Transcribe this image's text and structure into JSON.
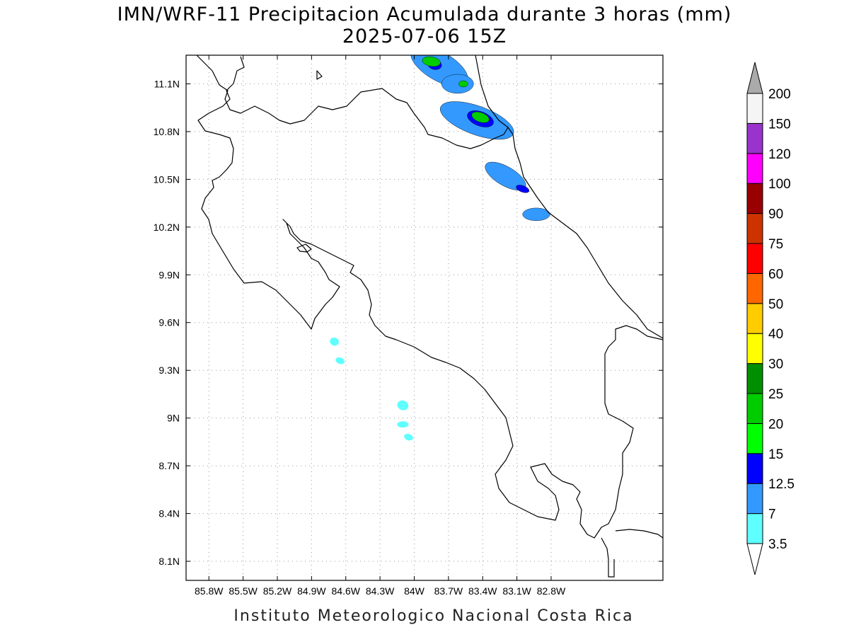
{
  "title": {
    "line1": "IMN/WRF-11 Precipitacion Acumulada durante 3 horas (mm)",
    "line2": "2025-07-06 15Z"
  },
  "footer": "Instituto Meteorologico Nacional Costa Rica",
  "map": {
    "lon_range": [
      -86.0,
      -81.82
    ],
    "lat_range": [
      7.98,
      11.28
    ],
    "lon_ticks": [
      -85.8,
      -85.5,
      -85.2,
      -84.9,
      -84.6,
      -84.3,
      -84.0,
      -83.7,
      -83.4,
      -83.1,
      -82.8
    ],
    "lon_tick_labels": [
      "85.8W",
      "85.5W",
      "85.2W",
      "84.9W",
      "84.6W",
      "84.3W",
      "84W",
      "83.7W",
      "83.4W",
      "83.1W",
      "82.8W"
    ],
    "lat_ticks": [
      8.1,
      8.4,
      8.7,
      9.0,
      9.3,
      9.6,
      9.9,
      10.2,
      10.5,
      10.8,
      11.1
    ],
    "lat_tick_labels": [
      "8.1N",
      "8.4N",
      "8.7N",
      "9N",
      "9.3N",
      "9.6N",
      "9.9N",
      "10.2N",
      "10.5N",
      "10.8N",
      "11.1N"
    ],
    "grid": "dotted"
  },
  "colorbar": {
    "levels": [
      "3.5",
      "7",
      "12.5",
      "15",
      "20",
      "25",
      "30",
      "40",
      "50",
      "60",
      "75",
      "90",
      "100",
      "120",
      "150",
      "200"
    ],
    "colors": [
      "#5fffff",
      "#3399ff",
      "#0000ff",
      "#00ff00",
      "#00cc00",
      "#008f00",
      "#ffff00",
      "#ffcc00",
      "#ff6600",
      "#ff0000",
      "#cc3300",
      "#990000",
      "#ff00ff",
      "#9933cc",
      "#f5f5f5"
    ],
    "over_color": "#aaaaaa",
    "under_color": "#ffffff"
  },
  "precip_areas": [
    {
      "lon": -83.78,
      "lat": 11.21,
      "rx": 0.28,
      "ry": 0.09,
      "rot": 30,
      "level": 1
    },
    {
      "lon": -83.62,
      "lat": 11.1,
      "rx": 0.14,
      "ry": 0.06,
      "rot": 0,
      "level": 1
    },
    {
      "lon": -83.45,
      "lat": 10.87,
      "rx": 0.34,
      "ry": 0.09,
      "rot": 20,
      "level": 1
    },
    {
      "lon": -83.2,
      "lat": 10.52,
      "rx": 0.2,
      "ry": 0.06,
      "rot": 30,
      "level": 1
    },
    {
      "lon": -82.93,
      "lat": 10.28,
      "rx": 0.12,
      "ry": 0.04,
      "rot": 0,
      "level": 1
    },
    {
      "lon": -83.82,
      "lat": 11.22,
      "rx": 0.06,
      "ry": 0.03,
      "rot": 10,
      "level": 2
    },
    {
      "lon": -83.42,
      "lat": 10.88,
      "rx": 0.12,
      "ry": 0.045,
      "rot": 20,
      "level": 2
    },
    {
      "lon": -83.05,
      "lat": 10.44,
      "rx": 0.06,
      "ry": 0.02,
      "rot": 20,
      "level": 2
    },
    {
      "lon": -83.85,
      "lat": 11.24,
      "rx": 0.08,
      "ry": 0.03,
      "rot": 10,
      "level": 4
    },
    {
      "lon": -83.57,
      "lat": 11.1,
      "rx": 0.04,
      "ry": 0.02,
      "rot": 0,
      "level": 4
    },
    {
      "lon": -83.42,
      "lat": 10.89,
      "rx": 0.08,
      "ry": 0.03,
      "rot": 20,
      "level": 4
    },
    {
      "lon": -84.7,
      "lat": 9.48,
      "rx": 0.04,
      "ry": 0.025,
      "rot": 20,
      "level": 0
    },
    {
      "lon": -84.65,
      "lat": 9.36,
      "rx": 0.04,
      "ry": 0.02,
      "rot": 20,
      "level": 0
    },
    {
      "lon": -84.1,
      "lat": 9.08,
      "rx": 0.05,
      "ry": 0.03,
      "rot": 20,
      "level": 0
    },
    {
      "lon": -84.1,
      "lat": 8.96,
      "rx": 0.05,
      "ry": 0.02,
      "rot": 0,
      "level": 0
    },
    {
      "lon": -84.05,
      "lat": 8.88,
      "rx": 0.04,
      "ry": 0.02,
      "rot": 20,
      "level": 0
    }
  ]
}
